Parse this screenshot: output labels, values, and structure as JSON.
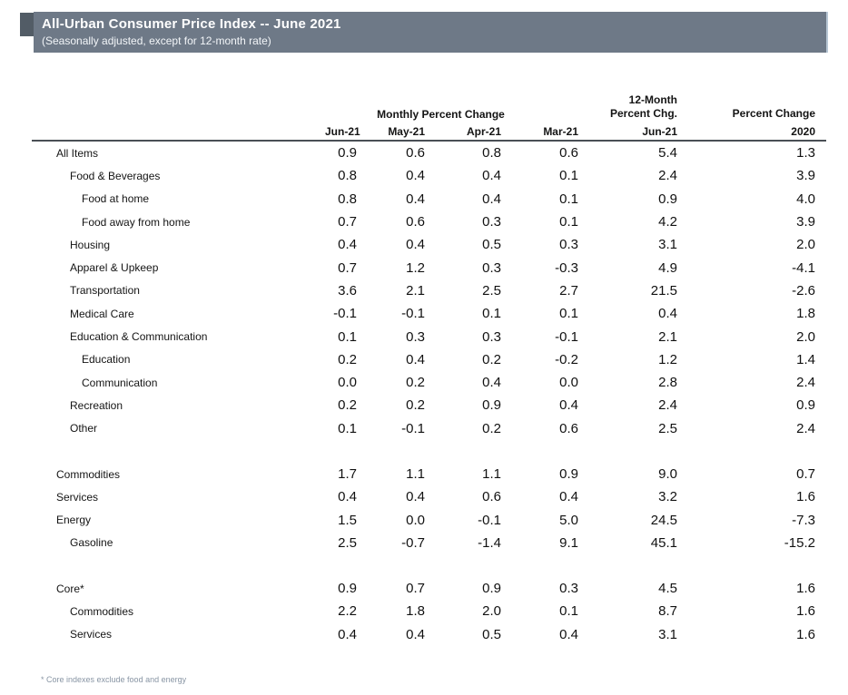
{
  "header": {
    "title": "All-Urban Consumer Price Index -- June 2021",
    "subtitle": "(Seasonally adjusted, except for 12-month rate)",
    "bar_color": "#6e7987",
    "tab_color": "#525c66",
    "title_text_color": "#ffffff"
  },
  "table": {
    "group_headers": {
      "monthly": "Monthly Percent Change",
      "twelve_month_line1": "12-Month",
      "twelve_month_line2": "Percent Chg.",
      "pct_change": "Percent Change"
    },
    "columns": [
      "Jun-21",
      "May-21",
      "Apr-21",
      "Mar-21",
      "Jun-21",
      "2020"
    ],
    "rows": [
      {
        "label": "All Items",
        "indent": 0,
        "values": [
          "0.9",
          "0.6",
          "0.8",
          "0.6",
          "5.4",
          "1.3"
        ]
      },
      {
        "label": "Food & Beverages",
        "indent": 1,
        "values": [
          "0.8",
          "0.4",
          "0.4",
          "0.1",
          "2.4",
          "3.9"
        ]
      },
      {
        "label": "Food at home",
        "indent": 2,
        "values": [
          "0.8",
          "0.4",
          "0.4",
          "0.1",
          "0.9",
          "4.0"
        ]
      },
      {
        "label": "Food away from home",
        "indent": 2,
        "values": [
          "0.7",
          "0.6",
          "0.3",
          "0.1",
          "4.2",
          "3.9"
        ]
      },
      {
        "label": "Housing",
        "indent": 1,
        "values": [
          "0.4",
          "0.4",
          "0.5",
          "0.3",
          "3.1",
          "2.0"
        ]
      },
      {
        "label": "Apparel & Upkeep",
        "indent": 1,
        "values": [
          "0.7",
          "1.2",
          "0.3",
          "-0.3",
          "4.9",
          "-4.1"
        ]
      },
      {
        "label": "Transportation",
        "indent": 1,
        "values": [
          "3.6",
          "2.1",
          "2.5",
          "2.7",
          "21.5",
          "-2.6"
        ]
      },
      {
        "label": "Medical Care",
        "indent": 1,
        "values": [
          "-0.1",
          "-0.1",
          "0.1",
          "0.1",
          "0.4",
          "1.8"
        ]
      },
      {
        "label": "Education & Communication",
        "indent": 1,
        "values": [
          "0.1",
          "0.3",
          "0.3",
          "-0.1",
          "2.1",
          "2.0"
        ]
      },
      {
        "label": "Education",
        "indent": 2,
        "values": [
          "0.2",
          "0.4",
          "0.2",
          "-0.2",
          "1.2",
          "1.4"
        ]
      },
      {
        "label": "Communication",
        "indent": 2,
        "values": [
          "0.0",
          "0.2",
          "0.4",
          "0.0",
          "2.8",
          "2.4"
        ]
      },
      {
        "label": "Recreation",
        "indent": 1,
        "values": [
          "0.2",
          "0.2",
          "0.9",
          "0.4",
          "2.4",
          "0.9"
        ]
      },
      {
        "label": "Other",
        "indent": 1,
        "values": [
          "0.1",
          "-0.1",
          "0.2",
          "0.6",
          "2.5",
          "2.4"
        ]
      },
      {
        "spacer": true
      },
      {
        "label": "Commodities",
        "indent": 0,
        "values": [
          "1.7",
          "1.1",
          "1.1",
          "0.9",
          "9.0",
          "0.7"
        ]
      },
      {
        "label": "Services",
        "indent": 0,
        "values": [
          "0.4",
          "0.4",
          "0.6",
          "0.4",
          "3.2",
          "1.6"
        ]
      },
      {
        "label": "Energy",
        "indent": 0,
        "values": [
          "1.5",
          "0.0",
          "-0.1",
          "5.0",
          "24.5",
          "-7.3"
        ]
      },
      {
        "label": "Gasoline",
        "indent": 1,
        "values": [
          "2.5",
          "-0.7",
          "-1.4",
          "9.1",
          "45.1",
          "-15.2"
        ]
      },
      {
        "spacer": true
      },
      {
        "label": "Core*",
        "indent": 0,
        "values": [
          "0.9",
          "0.7",
          "0.9",
          "0.3",
          "4.5",
          "1.6"
        ]
      },
      {
        "label": "Commodities",
        "indent": 1,
        "values": [
          "2.2",
          "1.8",
          "2.0",
          "0.1",
          "8.7",
          "1.6"
        ]
      },
      {
        "label": "Services",
        "indent": 1,
        "values": [
          "0.4",
          "0.4",
          "0.5",
          "0.4",
          "3.1",
          "1.6"
        ]
      }
    ],
    "footnote": "* Core indexes exclude food and energy"
  }
}
